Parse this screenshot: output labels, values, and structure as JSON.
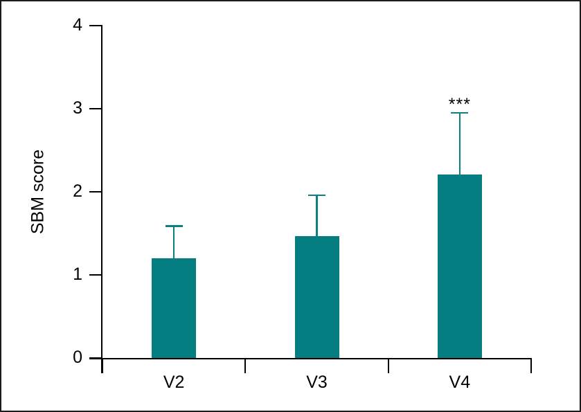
{
  "figure": {
    "background": "#ffffff",
    "border_color": "#1c1c1c"
  },
  "chart_data": {
    "type": "bar",
    "title": "",
    "xlabel": "",
    "ylabel": "SBM score",
    "categories": [
      "V2",
      "V3",
      "V4"
    ],
    "values": [
      1.2,
      1.47,
      2.21
    ],
    "errors_upper": [
      0.4,
      0.5,
      0.75
    ],
    "yticks": [
      0,
      1,
      2,
      3,
      4
    ],
    "ylim": [
      0,
      4
    ],
    "grid": false,
    "legend": false,
    "bar_color": "#047E80",
    "error_bar_color": "#0B7F81",
    "axis_color": "#000000",
    "annotations": [
      {
        "category": "V4",
        "text": "***"
      }
    ]
  }
}
